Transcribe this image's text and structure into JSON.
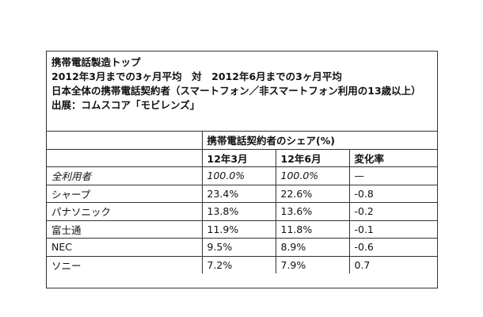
{
  "header": {
    "line1": "携帯電話製造トップ",
    "line2": "2012年3月までの3ヶ月平均　対　2012年6月までの3ヶ月平均",
    "line3": "日本全体の携帯電話契約者（スマートフォン／非スマートフォン利用の13歳以上）",
    "line4": "出展：コムスコア「モビレンズ」"
  },
  "table": {
    "group_header": "携帯電話契約者のシェア(%)",
    "columns": [
      "12年3月",
      "12年6月",
      "変化率"
    ],
    "rows": [
      {
        "name": "全利用者",
        "mar": "100.0%",
        "jun": "100.0%",
        "change": "—"
      },
      {
        "name": "シャープ",
        "mar": "23.4%",
        "jun": "22.6%",
        "change": "-0.8"
      },
      {
        "name": "パナソニック",
        "mar": "13.8%",
        "jun": "13.6%",
        "change": "-0.2"
      },
      {
        "name": "富士通",
        "mar": "11.9%",
        "jun": "11.8%",
        "change": "-0.1"
      },
      {
        "name": "NEC",
        "mar": "9.5%",
        "jun": "8.9%",
        "change": "-0.6"
      },
      {
        "name": "ソニー",
        "mar": "7.2%",
        "jun": "7.9%",
        "change": "0.7"
      }
    ]
  }
}
